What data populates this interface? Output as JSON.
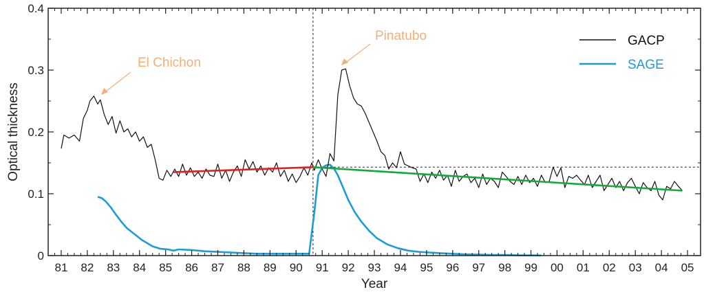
{
  "chart_data": {
    "type": "line",
    "xlabel": "Year",
    "ylabel": "Optical thickness",
    "xlim": [
      1981,
      2006
    ],
    "ylim": [
      0,
      0.4
    ],
    "x_ticks": [
      "81",
      "82",
      "83",
      "84",
      "85",
      "86",
      "87",
      "88",
      "89",
      "90",
      "91",
      "92",
      "93",
      "94",
      "95",
      "96",
      "97",
      "98",
      "99",
      "00",
      "01",
      "02",
      "03",
      "04",
      "05"
    ],
    "y_ticks": [
      "0",
      "0.1",
      "0.2",
      "0.3",
      "0.4"
    ],
    "grid": false,
    "legend_position": "top-right",
    "colors": {
      "gacp": "#111111",
      "sage": "#1a9cd8",
      "trend_pre": "#e02020",
      "trend_post": "#13a83a",
      "annotation": "#f0b07a"
    },
    "annotations": [
      {
        "text": "El Chichon",
        "x": 1982.7,
        "y": 0.258
      },
      {
        "text": "Pinatubo",
        "x": 1991.6,
        "y": 0.302
      }
    ],
    "series": [
      {
        "name": "GACP",
        "x": [
          1981.5,
          1981.6,
          1981.8,
          1982.0,
          1982.2,
          1982.35,
          1982.5,
          1982.6,
          1982.75,
          1982.9,
          1983.0,
          1983.15,
          1983.3,
          1983.45,
          1983.6,
          1983.75,
          1983.9,
          1984.05,
          1984.2,
          1984.35,
          1984.5,
          1984.65,
          1984.8,
          1984.95,
          1985.1,
          1985.25,
          1985.4,
          1985.55,
          1985.7,
          1985.85,
          1986.0,
          1986.15,
          1986.3,
          1986.45,
          1986.6,
          1986.75,
          1986.9,
          1987.05,
          1987.2,
          1987.35,
          1987.5,
          1987.65,
          1987.8,
          1987.95,
          1988.1,
          1988.25,
          1988.4,
          1988.55,
          1988.7,
          1988.85,
          1989.0,
          1989.15,
          1989.3,
          1989.45,
          1989.6,
          1989.75,
          1989.9,
          1990.05,
          1990.2,
          1990.35,
          1990.5,
          1990.65,
          1990.8,
          1990.95,
          1991.1,
          1991.2,
          1991.35,
          1991.5,
          1991.65,
          1991.8,
          1991.95,
          1992.1,
          1992.25,
          1992.4,
          1992.55,
          1992.7,
          1992.85,
          1993.0,
          1993.15,
          1993.3,
          1993.45,
          1993.6,
          1993.75,
          1993.9,
          1994.05,
          1994.2,
          1994.35,
          1994.5,
          1994.65,
          1994.8,
          1994.95,
          1995.1,
          1995.25,
          1995.4,
          1995.55,
          1995.7,
          1995.85,
          1996.0,
          1996.15,
          1996.3,
          1996.45,
          1996.6,
          1996.75,
          1996.9,
          1997.05,
          1997.2,
          1997.35,
          1997.5,
          1997.65,
          1997.8,
          1997.95,
          1998.1,
          1998.25,
          1998.4,
          1998.55,
          1998.7,
          1998.85,
          1999.0,
          1999.15,
          1999.3,
          1999.45,
          1999.6,
          1999.75,
          1999.9,
          2000.05,
          2000.2,
          2000.35,
          2000.5,
          2000.65,
          2000.8,
          2000.95,
          2001.1,
          2001.25,
          2001.4,
          2001.55,
          2001.7,
          2001.85,
          2002.0,
          2002.15,
          2002.3,
          2002.45,
          2002.6,
          2002.75,
          2002.9,
          2003.05,
          2003.2,
          2003.35,
          2003.5,
          2003.65,
          2003.8,
          2003.95,
          2004.1,
          2004.25,
          2004.4,
          2004.55,
          2004.7,
          2004.85,
          2005.0,
          2005.15,
          2005.3
        ],
        "values": [
          0.173,
          0.195,
          0.19,
          0.195,
          0.185,
          0.222,
          0.235,
          0.25,
          0.258,
          0.245,
          0.252,
          0.228,
          0.212,
          0.225,
          0.198,
          0.218,
          0.2,
          0.205,
          0.192,
          0.2,
          0.185,
          0.192,
          0.175,
          0.18,
          0.155,
          0.125,
          0.122,
          0.138,
          0.128,
          0.14,
          0.128,
          0.148,
          0.13,
          0.142,
          0.128,
          0.135,
          0.125,
          0.14,
          0.13,
          0.128,
          0.148,
          0.125,
          0.138,
          0.12,
          0.135,
          0.145,
          0.128,
          0.155,
          0.14,
          0.152,
          0.135,
          0.145,
          0.13,
          0.142,
          0.135,
          0.15,
          0.128,
          0.138,
          0.12,
          0.132,
          0.118,
          0.128,
          0.142,
          0.13,
          0.15,
          0.138,
          0.155,
          0.14,
          0.128,
          0.165,
          0.153,
          0.26,
          0.3,
          0.302,
          0.275,
          0.255,
          0.245,
          0.242,
          0.23,
          0.215,
          0.2,
          0.185,
          0.168,
          0.162,
          0.14,
          0.15,
          0.142,
          0.168,
          0.148,
          0.145,
          0.142,
          0.14,
          0.12,
          0.132,
          0.118,
          0.135,
          0.125,
          0.138,
          0.122,
          0.13,
          0.112,
          0.138,
          0.12,
          0.128,
          0.132,
          0.118,
          0.125,
          0.11,
          0.132,
          0.115,
          0.125,
          0.12,
          0.11,
          0.135,
          0.128,
          0.12,
          0.115,
          0.128,
          0.115,
          0.13,
          0.118,
          0.125,
          0.112,
          0.13,
          0.118,
          0.12,
          0.143,
          0.128,
          0.142,
          0.11,
          0.128,
          0.125,
          0.13,
          0.122,
          0.115,
          0.13,
          0.11,
          0.12,
          0.13,
          0.105,
          0.115,
          0.125,
          0.11,
          0.12,
          0.105,
          0.118,
          0.125,
          0.112,
          0.1,
          0.118,
          0.11,
          0.105,
          0.12,
          0.098,
          0.09,
          0.112,
          0.108,
          0.12,
          0.112,
          0.105
        ]
      },
      {
        "name": "SAGE",
        "x": [
          1982.9,
          1983.05,
          1983.2,
          1983.4,
          1983.6,
          1983.8,
          1984.0,
          1984.3,
          1984.6,
          1985.0,
          1985.3,
          1985.6,
          1985.8,
          1986.0,
          1986.5,
          1987.0,
          1987.5,
          1988.0,
          1988.5,
          1989.0,
          1989.5,
          1990.0,
          1990.5,
          1991.0,
          1991.2,
          1991.35,
          1991.5,
          1991.65,
          1991.8,
          1991.95,
          1992.1,
          1992.3,
          1992.5,
          1992.75,
          1993.0,
          1993.3,
          1993.6,
          1994.0,
          1994.4,
          1994.8,
          1995.2,
          1995.6,
          1996.0,
          1996.5,
          1997.0,
          1997.5,
          1998.0,
          1998.5,
          1999.0,
          1999.5,
          1999.9
        ],
        "values": [
          0.095,
          0.093,
          0.088,
          0.078,
          0.066,
          0.055,
          0.045,
          0.035,
          0.025,
          0.015,
          0.011,
          0.01,
          0.008,
          0.01,
          0.009,
          0.007,
          0.006,
          0.005,
          0.004,
          0.003,
          0.003,
          0.003,
          0.003,
          0.003,
          0.07,
          0.13,
          0.142,
          0.146,
          0.147,
          0.141,
          0.13,
          0.11,
          0.09,
          0.07,
          0.055,
          0.04,
          0.028,
          0.018,
          0.012,
          0.008,
          0.006,
          0.005,
          0.004,
          0.003,
          0.002,
          0.0015,
          0.001,
          0.001,
          0.0005,
          0.0003,
          0.0002
        ]
      }
    ],
    "trend_lines": [
      {
        "x": [
          1985.8,
          1991.15
        ],
        "values": [
          0.135,
          0.143
        ]
      },
      {
        "x": [
          1991.15,
          2005.3
        ],
        "values": [
          0.143,
          0.105
        ]
      }
    ],
    "reference_line": {
      "x": [
        1991.15,
        2006
      ],
      "values": [
        0.143,
        0.143
      ]
    },
    "event_line_x": 1991.15
  }
}
